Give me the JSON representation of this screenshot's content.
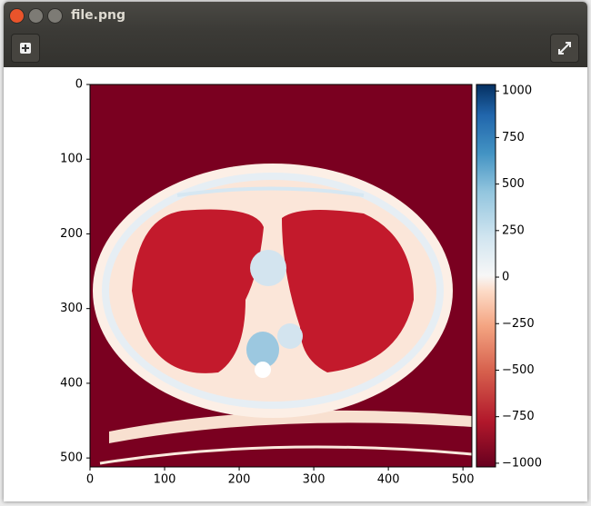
{
  "window": {
    "title": "file.png"
  },
  "chart_data": {
    "type": "image",
    "xlim": [
      0,
      512
    ],
    "xticks": [
      0,
      100,
      200,
      300,
      400,
      500
    ],
    "ylim": [
      0,
      512
    ],
    "yticks": [
      0,
      100,
      200,
      300,
      400,
      500
    ],
    "y_inverted": true,
    "colormap": "RdBu",
    "colorbar": {
      "lim": [
        -1020,
        1035
      ],
      "ticks": [
        {
          "value": -1000,
          "label": "−1000"
        },
        {
          "value": -750,
          "label": "−750"
        },
        {
          "value": -500,
          "label": "−500"
        },
        {
          "value": -250,
          "label": "−250"
        },
        0,
        250,
        500,
        750,
        1000
      ]
    }
  }
}
